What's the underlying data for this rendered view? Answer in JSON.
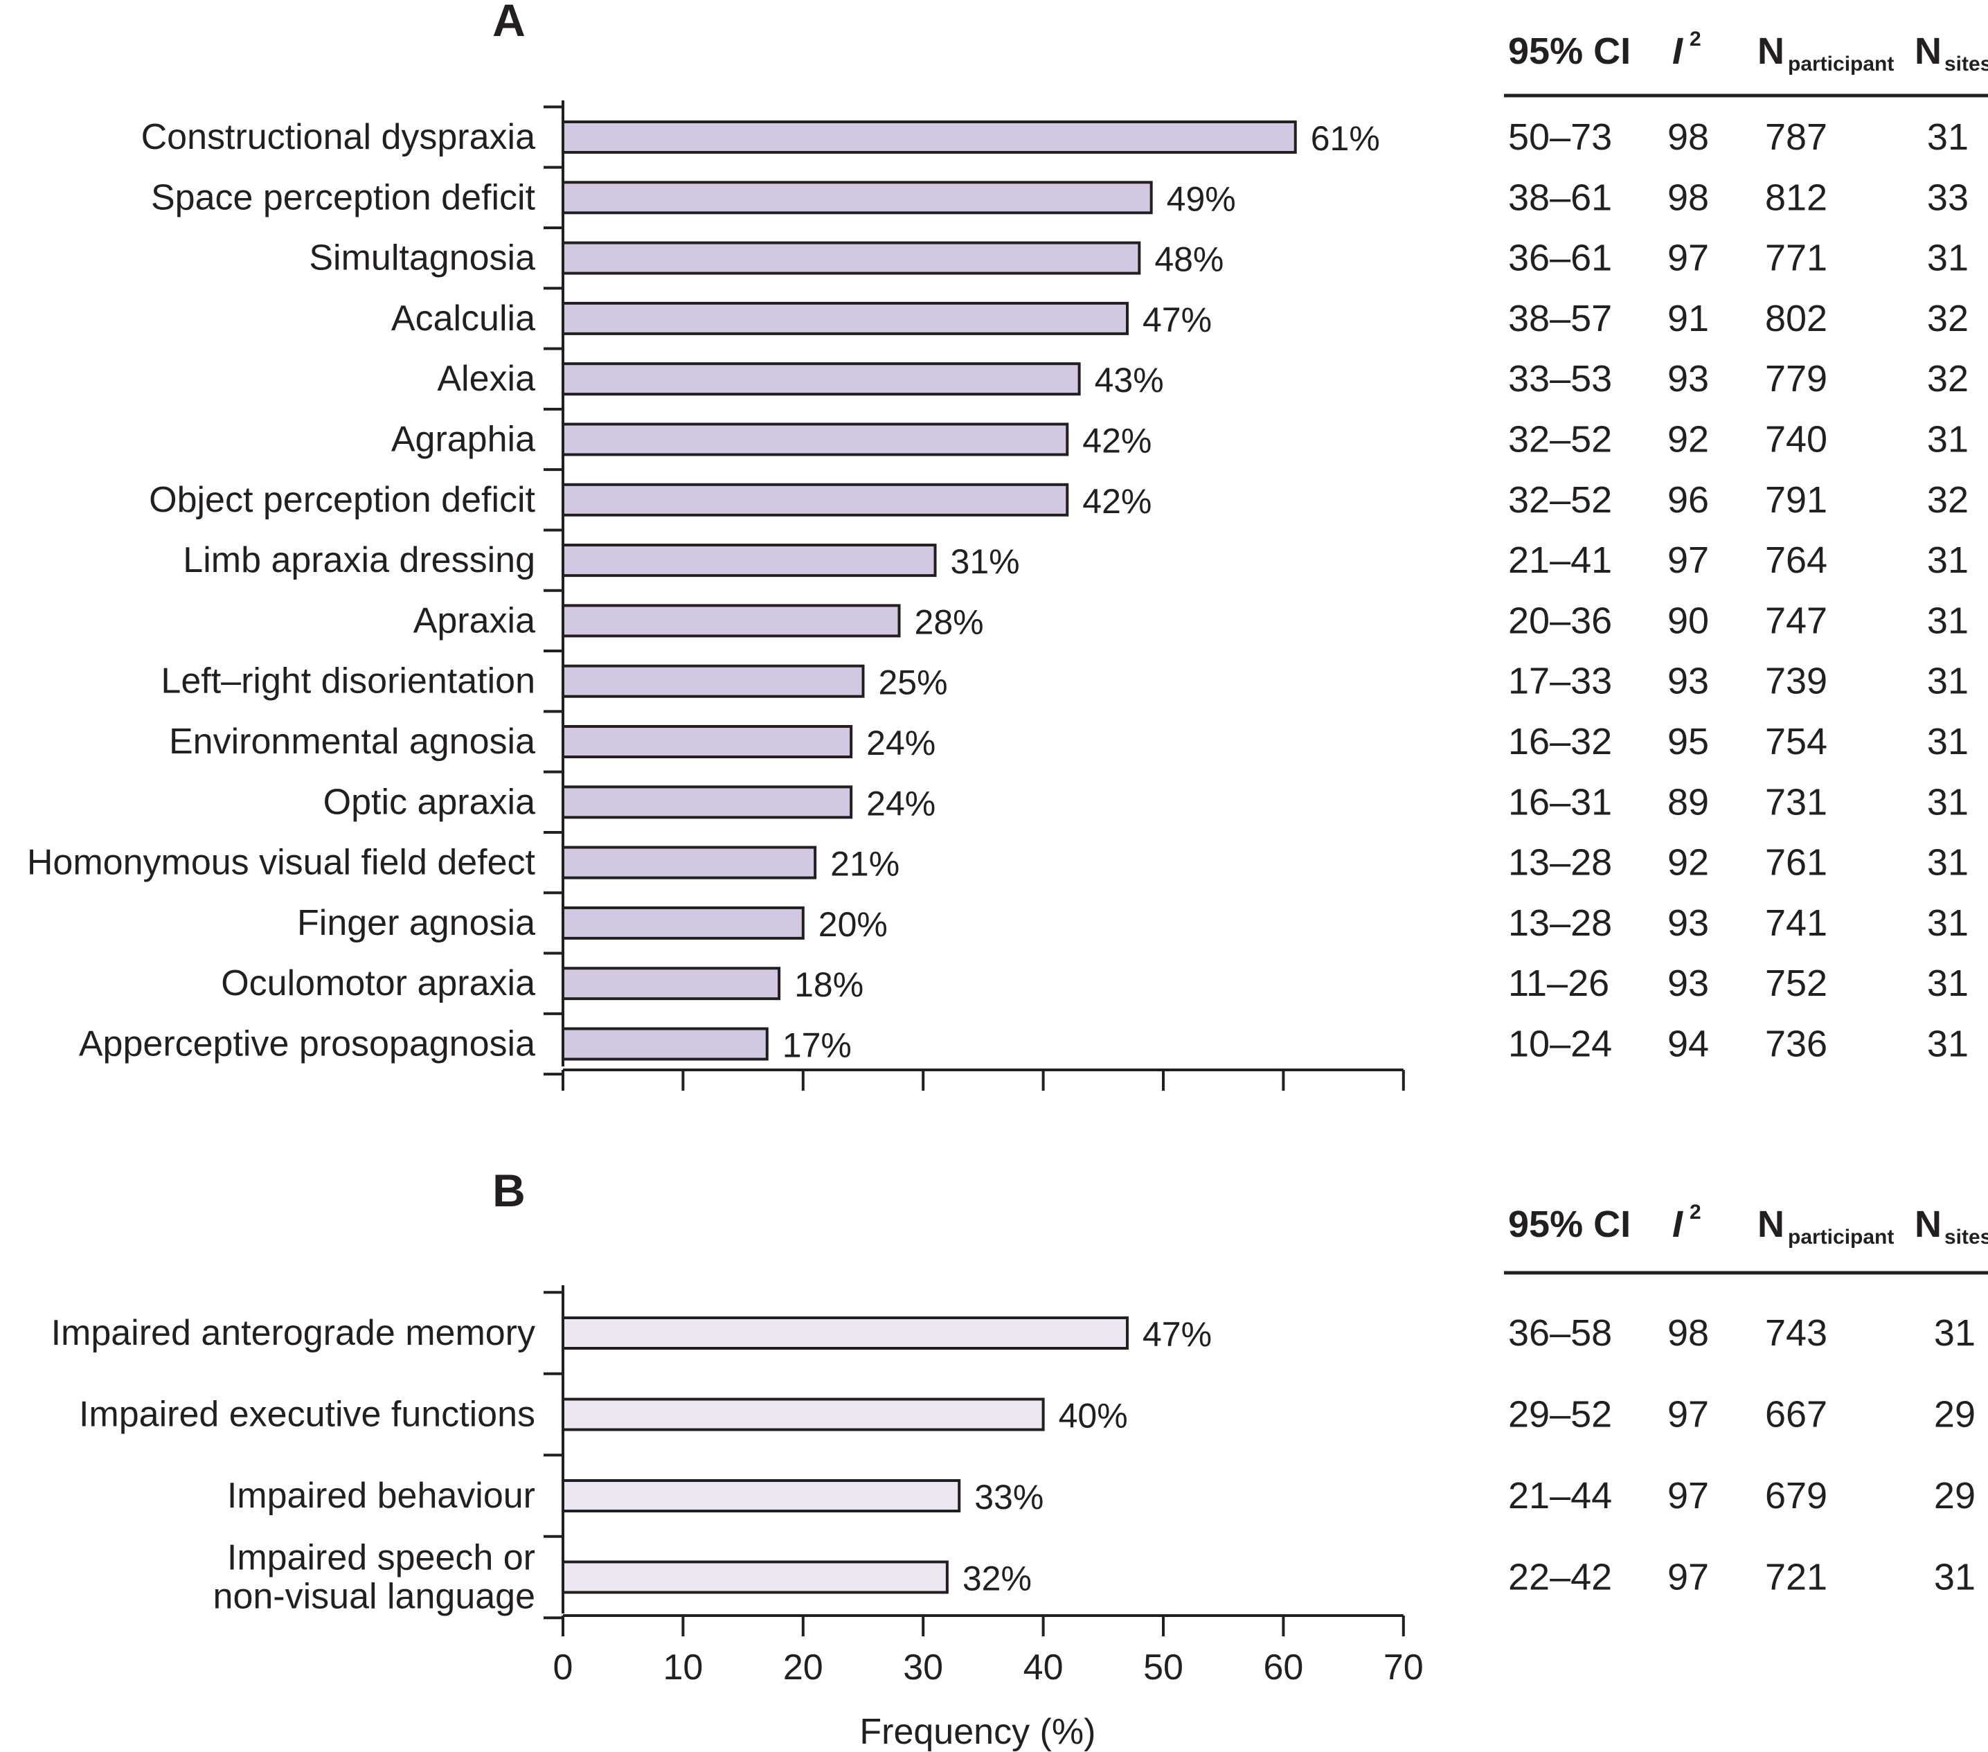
{
  "chart_data": [
    {
      "type": "bar",
      "orientation": "horizontal",
      "panel": "A",
      "bar_color": "#d3c8e2",
      "categories": [
        "Constructional dyspraxia",
        "Space perception deficit",
        "Simultagnosia",
        "Acalculia",
        "Alexia",
        "Agraphia",
        "Object perception deficit",
        "Limb apraxia dressing",
        "Apraxia",
        "Left–right disorientation",
        "Environmental agnosia",
        "Optic apraxia",
        "Homonymous visual field defect",
        "Finger agnosia",
        "Oculomotor apraxia",
        "Apperceptive prosopagnosia"
      ],
      "values": [
        61,
        49,
        48,
        47,
        43,
        42,
        42,
        31,
        28,
        25,
        24,
        24,
        21,
        20,
        18,
        17
      ],
      "value_labels": [
        "61%",
        "49%",
        "48%",
        "47%",
        "43%",
        "42%",
        "42%",
        "31%",
        "28%",
        "25%",
        "24%",
        "24%",
        "21%",
        "20%",
        "18%",
        "17%"
      ],
      "xlim": [
        0,
        70
      ],
      "table": {
        "headers": {
          "ci": "95% CI",
          "i2": "I",
          "i2_sup": "2",
          "np": "N",
          "np_sub": "participant",
          "ns": "N",
          "ns_sub": "sites"
        },
        "ci": [
          "50–73",
          "38–61",
          "36–61",
          "38–57",
          "33–53",
          "32–52",
          "32–52",
          "21–41",
          "20–36",
          "17–33",
          "16–32",
          "16–31",
          "13–28",
          "13–28",
          "11–26",
          "10–24"
        ],
        "i2": [
          "98",
          "98",
          "97",
          "91",
          "93",
          "92",
          "96",
          "97",
          "90",
          "93",
          "95",
          "89",
          "92",
          "93",
          "93",
          "94"
        ],
        "n_participant": [
          "787",
          "812",
          "771",
          "802",
          "779",
          "740",
          "791",
          "764",
          "747",
          "739",
          "754",
          "731",
          "761",
          "741",
          "752",
          "736"
        ],
        "n_sites": [
          "31",
          "33",
          "31",
          "32",
          "32",
          "31",
          "32",
          "31",
          "31",
          "31",
          "31",
          "31",
          "31",
          "31",
          "31",
          "31"
        ]
      }
    },
    {
      "type": "bar",
      "orientation": "horizontal",
      "panel": "B",
      "bar_color": "#ebe6f2",
      "categories": [
        "Impaired anterograde memory",
        "Impaired executive functions",
        "Impaired behaviour",
        "Impaired speech or\nnon-visual language"
      ],
      "values": [
        47,
        40,
        33,
        32
      ],
      "value_labels": [
        "47%",
        "40%",
        "33%",
        "32%"
      ],
      "xlim": [
        0,
        70
      ],
      "xticks": [
        "0",
        "10",
        "20",
        "30",
        "40",
        "50",
        "60",
        "70"
      ],
      "xlabel": "Frequency (%)",
      "table": {
        "headers": {
          "ci": "95% CI",
          "i2": "I",
          "i2_sup": "2",
          "np": "N",
          "np_sub": "participant",
          "ns": "N",
          "ns_sub": "sites"
        },
        "ci": [
          "36–58",
          "29–52",
          "21–44",
          "22–42"
        ],
        "i2": [
          "98",
          "97",
          "97",
          "97"
        ],
        "n_participant": [
          "743",
          "667",
          "679",
          "721"
        ],
        "n_sites": [
          "31",
          "29",
          "29",
          "31"
        ]
      }
    }
  ]
}
